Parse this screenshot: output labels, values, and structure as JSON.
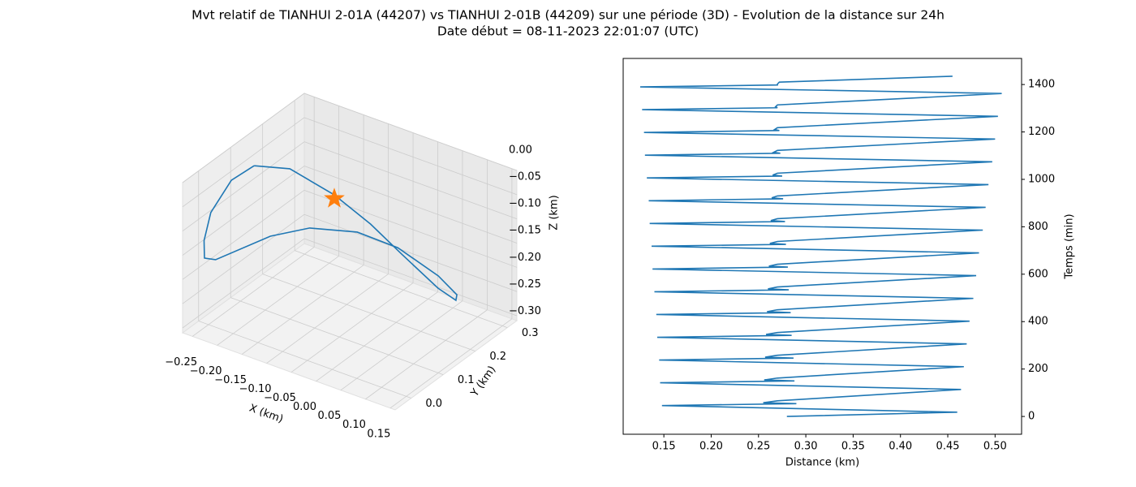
{
  "title": "Mvt relatif de TIANHUI 2-01A (44207) vs TIANHUI 2-01B (44209) sur une période (3D) - Evolution de la distance sur 24h",
  "subtitle": "Date début = 08-11-2023 22:01:07 (UTC)",
  "chart_data": [
    {
      "type": "line3d",
      "xlabel": "X (km)",
      "ylabel": "Y (km)",
      "zlabel": "Z (km)",
      "xlim": [
        -0.27,
        0.16
      ],
      "ylim": [
        -0.05,
        0.33
      ],
      "zlim": [
        -0.31,
        0
      ],
      "xticks": [
        {
          "value": -0.25,
          "label": "−0.25"
        },
        {
          "value": -0.2,
          "label": "−0.20"
        },
        {
          "value": -0.15,
          "label": "−0.15"
        },
        {
          "value": -0.1,
          "label": "−0.10"
        },
        {
          "value": -0.05,
          "label": "−0.05"
        },
        {
          "value": 0,
          "label": "0.00"
        },
        {
          "value": 0.05,
          "label": "0.05"
        },
        {
          "value": 0.1,
          "label": "0.10"
        },
        {
          "value": 0.15,
          "label": "0.15"
        }
      ],
      "yticks": [
        {
          "value": 0,
          "label": "0.0"
        },
        0.1,
        0.2,
        0.3
      ],
      "zticks": [
        {
          "value": 0,
          "label": "0.00"
        },
        {
          "value": -0.05,
          "label": "−0.05"
        },
        {
          "value": -0.1,
          "label": "−0.10"
        },
        {
          "value": -0.15,
          "label": "−0.15"
        },
        {
          "value": -0.2,
          "label": "−0.20"
        },
        {
          "value": -0.25,
          "label": "−0.25"
        },
        {
          "value": -0.3,
          "label": "−0.30"
        }
      ],
      "grid": true,
      "series": [
        {
          "color": "#1f77b4",
          "x": [
            -0.249,
            -0.204,
            -0.132,
            -0.073,
            -0.021,
            0.038,
            0.049,
            0.049,
            0.007,
            -0.073,
            -0.139,
            -0.193,
            -0.231,
            -0.244,
            -0.262,
            -0.268,
            -0.266,
            -0.262,
            -0.249
          ],
          "y": [
            0.141,
            0.183,
            0.21,
            0.233,
            0.249,
            0.272,
            0.311,
            0.314,
            0.321,
            0.318,
            0.293,
            0.228,
            0.164,
            0.013,
            0.006,
            0.014,
            0.032,
            0.09,
            0.141
          ],
          "z": [
            -0.05,
            -0.06,
            -0.1,
            -0.15,
            -0.2,
            -0.26,
            -0.3,
            -0.29,
            -0.27,
            -0.24,
            -0.22,
            -0.2,
            -0.2,
            -0.18,
            -0.18,
            -0.15,
            -0.1,
            -0.06,
            -0.05
          ]
        }
      ],
      "marker": {
        "symbol": "star",
        "color": "#ff7f0e",
        "x": -0.035,
        "y": 0.061,
        "z": 0
      }
    },
    {
      "type": "line",
      "xlabel": "Distance (km)",
      "ylabel": "Temps (min)",
      "yaxis_side": "right",
      "xlim": [
        0.107,
        0.528
      ],
      "ylim": [
        -75,
        1510
      ],
      "xticks": [
        0.15,
        {
          "value": 0.2,
          "label": "0.20"
        },
        0.25,
        {
          "value": 0.3,
          "label": "0.30"
        },
        0.35,
        {
          "value": 0.4,
          "label": "0.40"
        },
        0.45,
        {
          "value": 0.5,
          "label": "0.50"
        }
      ],
      "yticks": [
        0,
        200,
        400,
        600,
        800,
        1000,
        1200,
        1400
      ],
      "grid": false,
      "series": [
        {
          "color": "#1f77b4",
          "x": [
            0.28,
            0.46,
            0.148,
            0.29,
            0.255,
            0.27,
            0.464,
            0.146,
            0.288,
            0.256,
            0.27,
            0.467,
            0.145,
            0.287,
            0.257,
            0.27,
            0.47,
            0.143,
            0.285,
            0.258,
            0.27,
            0.473,
            0.142,
            0.284,
            0.259,
            0.27,
            0.477,
            0.14,
            0.282,
            0.26,
            0.27,
            0.48,
            0.138,
            0.281,
            0.261,
            0.27,
            0.483,
            0.137,
            0.279,
            0.262,
            0.27,
            0.487,
            0.135,
            0.278,
            0.263,
            0.27,
            0.49,
            0.134,
            0.276,
            0.264,
            0.27,
            0.493,
            0.132,
            0.275,
            0.265,
            0.27,
            0.497,
            0.13,
            0.273,
            0.266,
            0.27,
            0.5,
            0.129,
            0.272,
            0.267,
            0.27,
            0.503,
            0.127,
            0.27,
            0.268,
            0.27,
            0.507,
            0.125,
            0.27,
            0.27,
            0.272,
            0.455
          ],
          "y": [
            0,
            18,
            46,
            54,
            58,
            66,
            114,
            142,
            150,
            154,
            162,
            210,
            238,
            246,
            250,
            258,
            306,
            334,
            342,
            346,
            354,
            402,
            430,
            438,
            442,
            450,
            498,
            526,
            534,
            538,
            546,
            594,
            622,
            630,
            634,
            642,
            690,
            718,
            726,
            730,
            738,
            786,
            814,
            822,
            826,
            834,
            882,
            910,
            918,
            922,
            930,
            978,
            1006,
            1014,
            1018,
            1026,
            1074,
            1102,
            1110,
            1114,
            1122,
            1170,
            1198,
            1206,
            1210,
            1218,
            1266,
            1294,
            1302,
            1306,
            1314,
            1362,
            1390,
            1398,
            1402,
            1410,
            1435
          ]
        }
      ]
    }
  ]
}
